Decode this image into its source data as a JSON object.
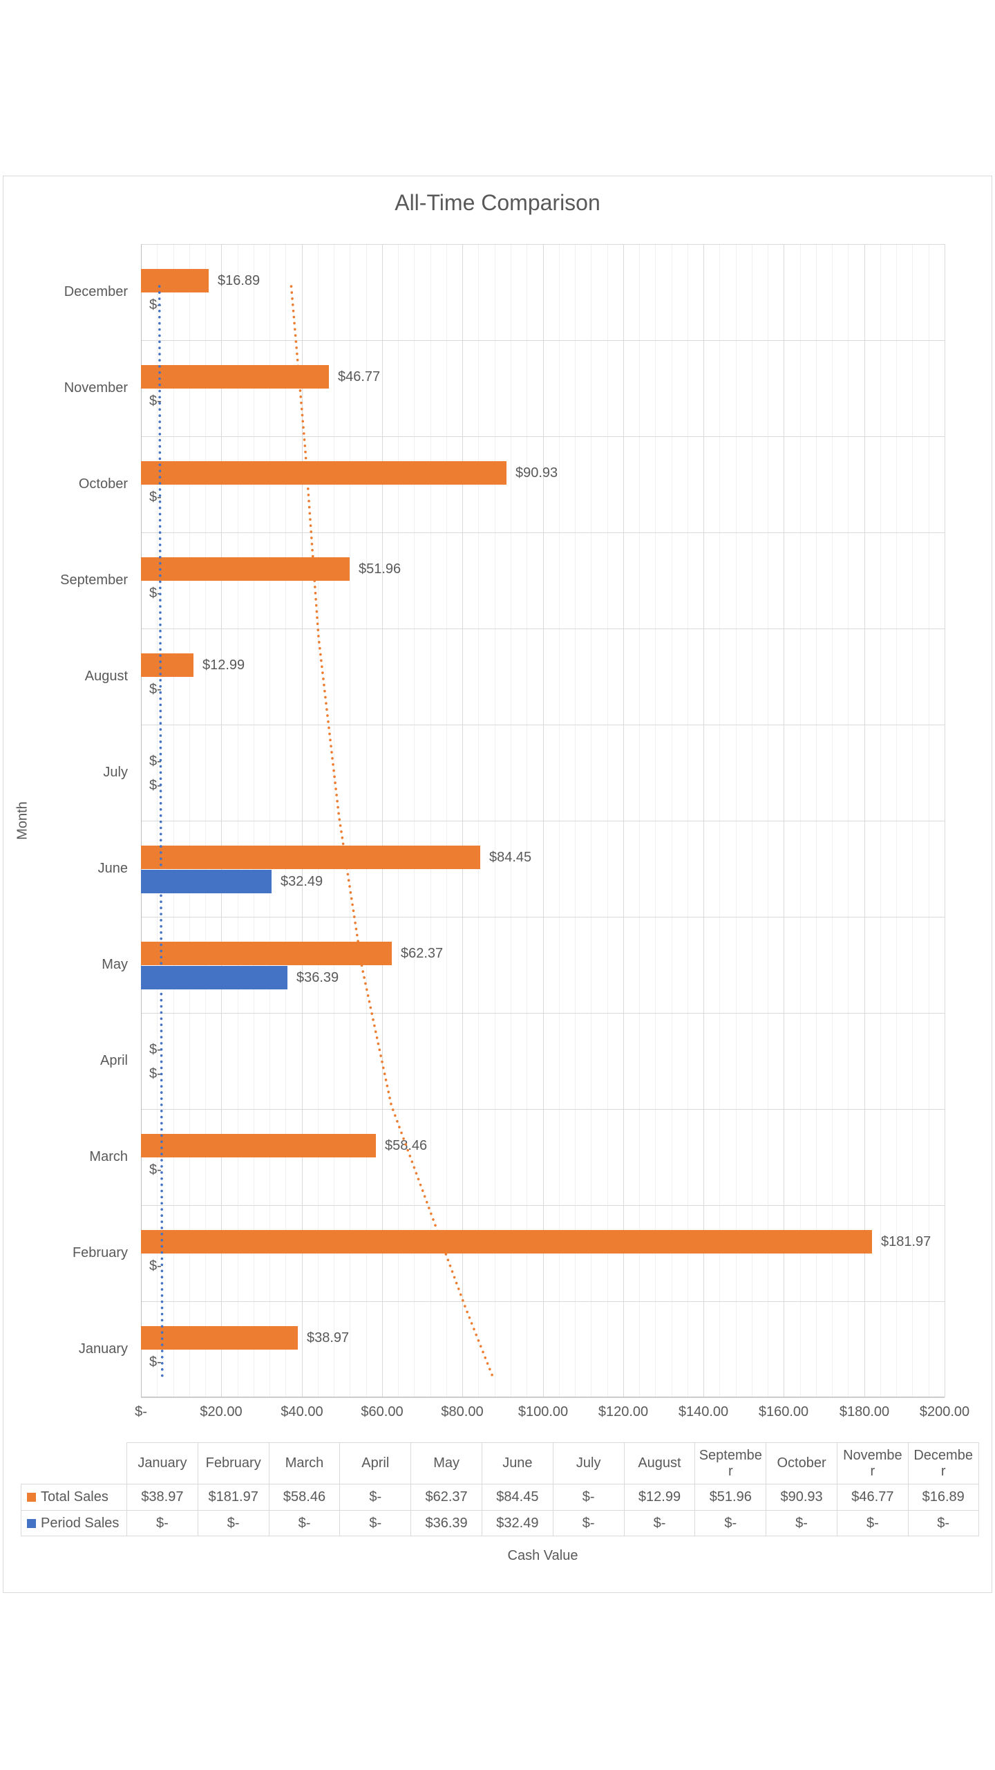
{
  "title": "All-Time Comparison",
  "axis_titles": {
    "y": "Month",
    "x": "Cash Value"
  },
  "colors": {
    "total_sales": "#ED7D31",
    "period_sales": "#4472C4",
    "text": "#595959",
    "gridline_major": "#D9D9D9",
    "gridline_minor": "#F0F0F0",
    "axis_line": "#BFBFBF"
  },
  "chart_data": {
    "type": "bar",
    "orientation": "horizontal",
    "title": "All-Time Comparison",
    "xlabel": "Cash Value",
    "ylabel": "Month",
    "categories": [
      "January",
      "February",
      "March",
      "April",
      "May",
      "June",
      "July",
      "August",
      "September",
      "October",
      "November",
      "December"
    ],
    "category_order_top_to_bottom": [
      "December",
      "November",
      "October",
      "September",
      "August",
      "July",
      "June",
      "May",
      "April",
      "March",
      "February",
      "January"
    ],
    "series": [
      {
        "name": "Total Sales",
        "color": "#ED7D31",
        "values": [
          38.97,
          181.97,
          58.46,
          0,
          62.37,
          84.45,
          0,
          12.99,
          51.96,
          90.93,
          46.77,
          16.89
        ],
        "labels": [
          "$38.97",
          "$181.97",
          "$58.46",
          "$-",
          "$62.37",
          "$84.45",
          "$-",
          "$12.99",
          "$51.96",
          "$90.93",
          "$46.77",
          "$16.89"
        ]
      },
      {
        "name": "Period Sales",
        "color": "#4472C4",
        "values": [
          0,
          0,
          0,
          0,
          36.39,
          32.49,
          0,
          0,
          0,
          0,
          0,
          0
        ],
        "labels": [
          "$-",
          "$-",
          "$-",
          "$-",
          "$36.39",
          "$32.49",
          "$-",
          "$-",
          "$-",
          "$-",
          "$-",
          "$-"
        ]
      }
    ],
    "x_axis": {
      "min": 0,
      "max": 200,
      "major_unit": 20,
      "minor_unit": 4,
      "tick_labels": [
        "$-",
        "$20.00",
        "$40.00",
        "$60.00",
        "$80.00",
        "$100.00",
        "$120.00",
        "$140.00",
        "$160.00",
        "$180.00",
        "$200.00"
      ]
    },
    "grid": "major-and-minor",
    "legend_position": "data-table-keys",
    "trendlines": [
      {
        "series": "Total Sales",
        "style": "dotted",
        "color": "#ED7D31",
        "points_value_row": [
          [
            37.4,
            0.44
          ],
          [
            40.9,
            2.14
          ],
          [
            44.2,
            4.09
          ],
          [
            49.3,
            5.96
          ],
          [
            55.0,
            7.52
          ],
          [
            62.3,
            8.96
          ],
          [
            80.7,
            11.06
          ],
          [
            87.5,
            11.78
          ]
        ]
      },
      {
        "series": "Period Sales",
        "style": "dotted",
        "color": "#4472C4",
        "points_value_row": [
          [
            4.6,
            0.44
          ],
          [
            5.3,
            11.78
          ]
        ]
      }
    ],
    "data_table": {
      "column_headers_display": [
        "January",
        "February",
        "March",
        "April",
        "May",
        "June",
        "July",
        "August",
        "Septembe\nr",
        "October",
        "Novembe\nr",
        "Decembe\nr"
      ],
      "rows": [
        {
          "key": "Total Sales",
          "swatch_color": "#ED7D31",
          "cells": [
            "$38.97",
            "$181.97",
            "$58.46",
            "$-",
            "$62.37",
            "$84.45",
            "$-",
            "$12.99",
            "$51.96",
            "$90.93",
            "$46.77",
            "$16.89"
          ]
        },
        {
          "key": "Period Sales",
          "swatch_color": "#4472C4",
          "cells": [
            "$-",
            "$-",
            "$-",
            "$-",
            "$36.39",
            "$32.49",
            "$-",
            "$-",
            "$-",
            "$-",
            "$-",
            "$-"
          ]
        }
      ]
    }
  }
}
